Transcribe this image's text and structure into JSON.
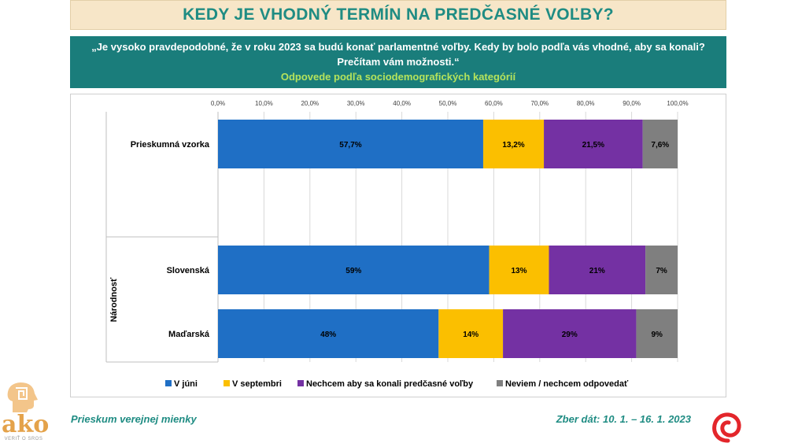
{
  "header": {
    "title": "KEDY JE VHODNÝ TERMÍN NA PREDČASNÉ VOĽBY?",
    "question_line1": "„Je vysoko pravdepodobné, že v roku 2023 sa budú konať parlamentné voľby. Kedy by bolo podľa vás vhodné, aby sa konali?",
    "question_line2": "Prečítam vám možnosti.“",
    "subtitle": "Odpovede podľa sociodemografických kategórií"
  },
  "chart_data": {
    "type": "bar",
    "orientation": "horizontal",
    "stacked": true,
    "categories": [
      "Prieskumná vzorka",
      "Slovenská",
      "Maďarská"
    ],
    "group_label": "Národnosť",
    "groups": [
      {
        "name": "",
        "categories": [
          "Prieskumná vzorka"
        ]
      },
      {
        "name": "Národnosť",
        "categories": [
          "Slovenská",
          "Maďarská"
        ]
      }
    ],
    "series": [
      {
        "name": "V júni",
        "color": "#1f6fc5",
        "values": [
          57.7,
          59,
          48
        ],
        "labels": [
          "57,7%",
          "59%",
          "48%"
        ]
      },
      {
        "name": "V septembri",
        "color": "#fbbf00",
        "values": [
          13.2,
          13,
          14
        ],
        "labels": [
          "13,2%",
          "13%",
          "14%"
        ]
      },
      {
        "name": "Nechcem aby sa konali predčasné voľby",
        "color": "#7431a3",
        "values": [
          21.5,
          21,
          29
        ],
        "labels": [
          "21,5%",
          "21%",
          "29%"
        ]
      },
      {
        "name": "Neviem / nechcem odpovedať",
        "color": "#7f7f7f",
        "values": [
          7.6,
          7,
          9
        ],
        "labels": [
          "7,6%",
          "7%",
          "9%"
        ]
      }
    ],
    "xlim": [
      0,
      100
    ],
    "ticks": [
      0,
      10,
      20,
      30,
      40,
      50,
      60,
      70,
      80,
      90,
      100
    ],
    "tick_labels": [
      "0,0%",
      "10,0%",
      "20,0%",
      "30,0%",
      "40,0%",
      "50,0%",
      "60,0%",
      "70,0%",
      "80,0%",
      "90,0%",
      "100,0%"
    ],
    "grid": true,
    "legend_position": "bottom"
  },
  "footer": {
    "survey": "Prieskum verejnej mienky",
    "dates": "Zber dát: 10. 1. – 16. 1. 2023",
    "logo_text": "ako",
    "logo_tagline": "VERIŤ O SROS"
  }
}
